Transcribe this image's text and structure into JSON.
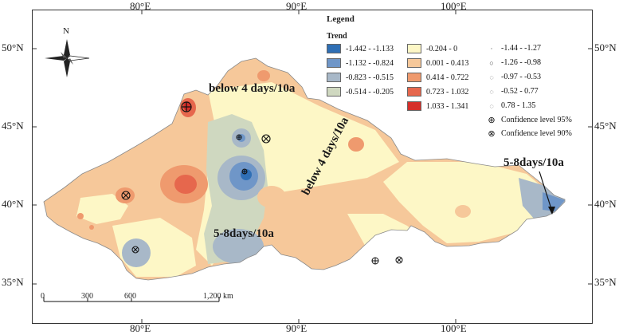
{
  "axes": {
    "lon_labels": [
      "80°E",
      "90°E",
      "100°E"
    ],
    "lat_labels": [
      "50°N",
      "45°N",
      "40°N",
      "35°N"
    ]
  },
  "north_arrow": {
    "label": "N",
    "icon": "north-arrow-compass-icon"
  },
  "legend": {
    "title": "Legend",
    "subtitle": "Trend",
    "fill_classes": [
      {
        "label": "-1.442 - -1.133",
        "color": "#2f6fb5"
      },
      {
        "label": "-1.132 - -0.824",
        "color": "#6f96c8"
      },
      {
        "label": "-0.823 - -0.515",
        "color": "#a8b8c8"
      },
      {
        "label": "-0.514 - -0.205",
        "color": "#cfd8c0"
      },
      {
        "label": "-0.204 - 0",
        "color": "#fdf7c6"
      },
      {
        "label": "0.001 - 0.413",
        "color": "#f6c89a"
      },
      {
        "label": "0.414 - 0.722",
        "color": "#ef9a6e"
      },
      {
        "label": "0.723 - 1.032",
        "color": "#e6674d"
      },
      {
        "label": "1.033 - 1.341",
        "color": "#d62f2a"
      }
    ],
    "point_classes": [
      {
        "label": "-1.44 - -1.27",
        "icon": "tiny-dot-icon"
      },
      {
        "label": "-1.26 - -0.98",
        "icon": "small-circle-icon"
      },
      {
        "label": "-0.97 - -0.53",
        "icon": "dashed-circle-icon"
      },
      {
        "label": "-0.52 - 0.77",
        "icon": "dashed-circle-icon"
      },
      {
        "label": "0.78 - 1.35",
        "icon": "dashed-circle-icon"
      }
    ],
    "confidence": [
      {
        "label": "Confidence level 95%",
        "icon": "circle-plus-icon"
      },
      {
        "label": "Confidence level 90%",
        "icon": "circle-x-icon"
      }
    ]
  },
  "annotations": {
    "below_top": "below 4 days/10a",
    "below_diag": "below 4 days/10a",
    "days_east": "5-8days/10a",
    "days_center": "5-8days/10a"
  },
  "scale_bar": {
    "labels": [
      "0",
      "300",
      "600",
      "1,200 km"
    ]
  }
}
